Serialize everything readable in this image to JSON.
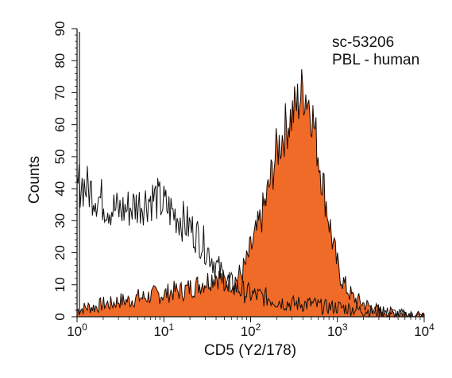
{
  "chart_data": {
    "type": "area",
    "title": "",
    "xlabel": "CD5 (Y2/178)",
    "ylabel": "Counts",
    "x_scale": "log",
    "xlim": [
      1,
      10000
    ],
    "ylim": [
      0,
      90
    ],
    "x_ticks": [
      {
        "base": "10",
        "exp": "0"
      },
      {
        "base": "10",
        "exp": "1"
      },
      {
        "base": "10",
        "exp": "2"
      },
      {
        "base": "10",
        "exp": "3"
      },
      {
        "base": "10",
        "exp": "4"
      }
    ],
    "y_ticks": [
      "0",
      "10",
      "20",
      "30",
      "40",
      "50",
      "60",
      "70",
      "80",
      "90"
    ],
    "annotations": [
      "sc-53206",
      "PBL - human"
    ],
    "grid": false,
    "legend": "none",
    "series": [
      {
        "style": "filled",
        "fill_color": "#f06a28",
        "x": [
          1,
          1.3,
          1.6,
          2,
          2.5,
          3,
          4,
          5,
          6,
          8,
          10,
          13,
          16,
          20,
          25,
          30,
          35,
          40,
          50,
          60,
          70,
          80,
          90,
          100,
          120,
          150,
          180,
          200,
          230,
          260,
          300,
          350,
          400,
          450,
          500,
          550,
          600,
          700,
          800,
          900,
          1000,
          1200,
          1500,
          2000,
          3000,
          5000,
          7000,
          10000
        ],
        "values": [
          2,
          3,
          3,
          4,
          4,
          5,
          5,
          6,
          6,
          7,
          7,
          8,
          8,
          9,
          10,
          11,
          12,
          13,
          11,
          11,
          12,
          14,
          17,
          21,
          27,
          36,
          46,
          52,
          56,
          60,
          63,
          67,
          71,
          69,
          65,
          58,
          51,
          40,
          30,
          22,
          16,
          10,
          6,
          4,
          2,
          1,
          1,
          0
        ]
      },
      {
        "style": "line",
        "line_color": "#111111",
        "x": [
          1,
          1.1,
          1.2,
          1.5,
          2,
          2.5,
          3,
          4,
          5,
          6,
          7,
          8,
          10,
          12,
          15,
          18,
          20,
          25,
          30,
          35,
          40,
          50,
          60,
          70,
          80,
          100,
          150,
          200,
          300,
          500,
          700,
          1000,
          2000,
          5000,
          10000
        ],
        "values": [
          40,
          42,
          41,
          39,
          36,
          34,
          33,
          34,
          35,
          36,
          37,
          37,
          35,
          33,
          31,
          29,
          28,
          25,
          22,
          19,
          16,
          12,
          10,
          9,
          8,
          7,
          6,
          5,
          4,
          4,
          3,
          3,
          2,
          1,
          0
        ]
      }
    ]
  }
}
